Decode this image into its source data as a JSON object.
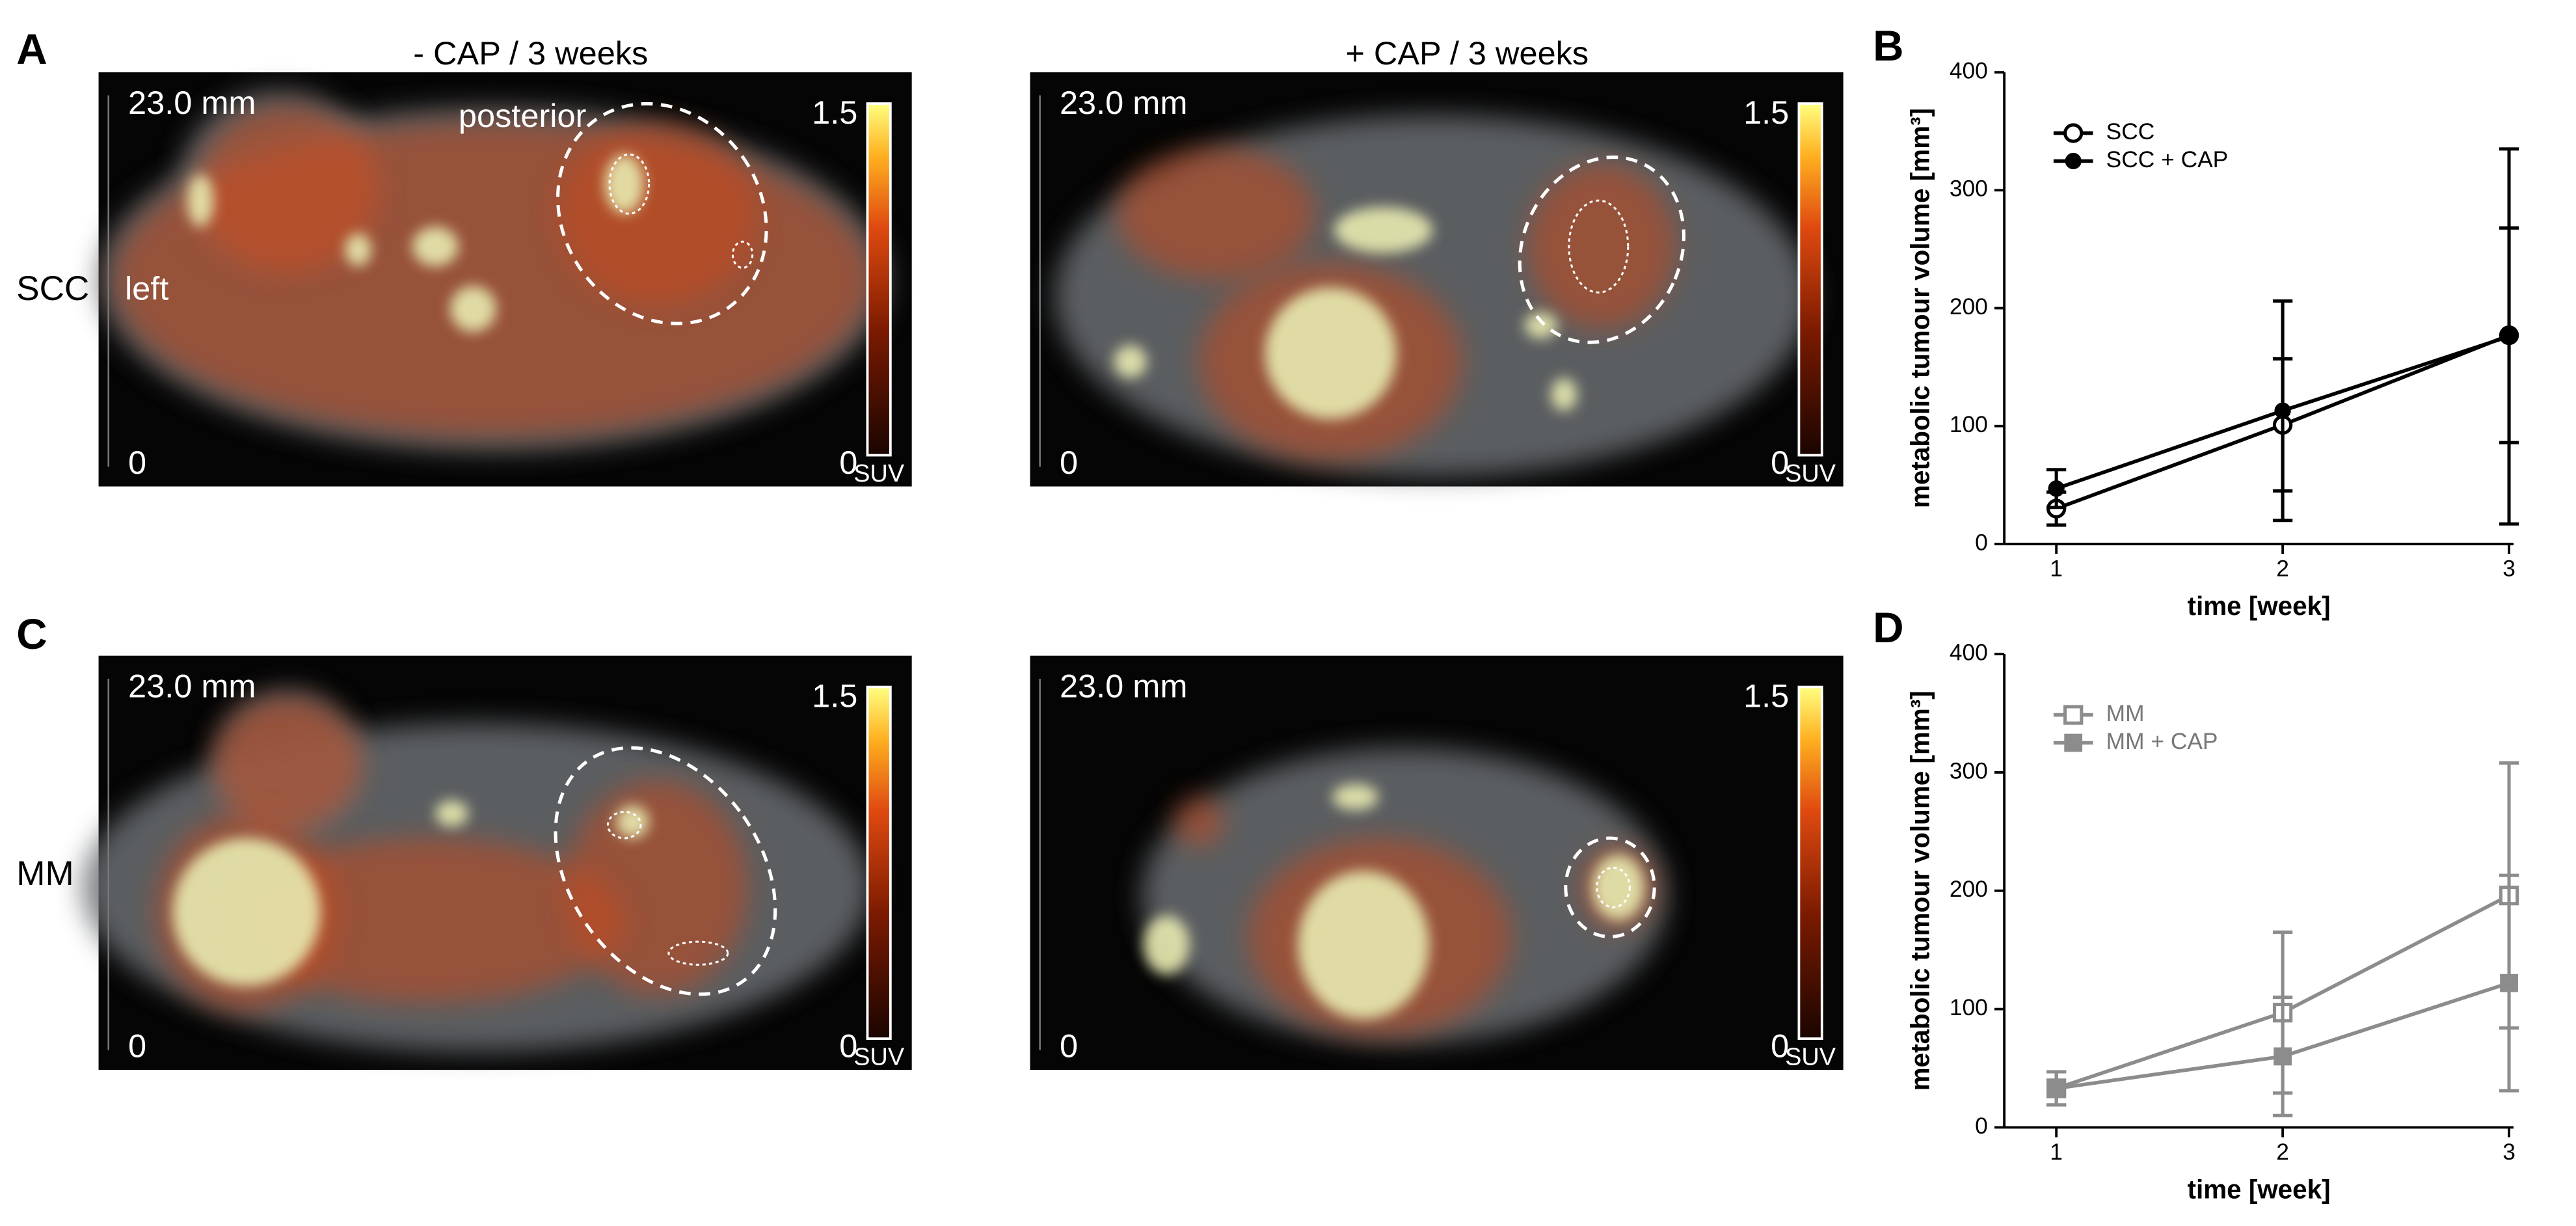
{
  "figure": {
    "panel_labels": [
      "A",
      "C"
    ],
    "column_titles": [
      "- CAP / 3 weeks",
      "+ CAP / 3 weeks"
    ],
    "row_labels": [
      "SCC",
      "MM"
    ],
    "annotations": [
      "posterior",
      "left"
    ],
    "images": [
      {
        "scale_length": "23.0 mm",
        "scale_zero": 0,
        "colorbar_max": 1.5,
        "colorbar_min": 0,
        "colorbar_unit": "SUV"
      },
      {
        "scale_length": "23.0 mm",
        "scale_zero": 0,
        "colorbar_max": 1.5,
        "colorbar_min": 0,
        "colorbar_unit": "SUV"
      },
      {
        "scale_length": "23.0 mm",
        "scale_zero": 0,
        "colorbar_max": 1.5,
        "colorbar_min": 0,
        "colorbar_unit": "SUV"
      },
      {
        "scale_length": "23.0 mm",
        "scale_zero": 0,
        "colorbar_max": 1.5,
        "colorbar_min": 0,
        "colorbar_unit": "SUV"
      }
    ]
  },
  "chart_data": [
    {
      "type": "line",
      "panel_label": "B",
      "x": [
        1,
        2,
        3
      ],
      "xlim": [
        0.77,
        3.02
      ],
      "xticks": [
        1,
        2,
        3
      ],
      "ylim": [
        0,
        400
      ],
      "yticks": [
        0,
        100,
        200,
        300,
        400
      ],
      "xlabel": "time [week]",
      "ylabel": "metabolic tumour volume [mm³]",
      "series": [
        {
          "name": "SCC",
          "color": "#000000",
          "marker": "open-circle",
          "values": [
            30,
            101,
            177
          ],
          "errors": [
            14,
            56,
            91
          ]
        },
        {
          "name": "SCC + CAP",
          "color": "#000000",
          "marker": "filled-circle",
          "values": [
            47,
            113,
            176
          ],
          "errors": [
            16,
            93,
            159
          ]
        }
      ]
    },
    {
      "type": "line",
      "panel_label": "D",
      "x": [
        1,
        2,
        3
      ],
      "xlim": [
        0.77,
        3.02
      ],
      "xticks": [
        1,
        2,
        3
      ],
      "ylim": [
        0,
        400
      ],
      "yticks": [
        0,
        100,
        200,
        300,
        400
      ],
      "xlabel": "time [week]",
      "ylabel": "metabolic tumour volume [mm³]",
      "series": [
        {
          "name": "MM",
          "color": "#8c8c8c",
          "marker": "open-square",
          "values": [
            33,
            97,
            196
          ],
          "errors": [
            14,
            68,
            112
          ]
        },
        {
          "name": "MM + CAP",
          "color": "#8c8c8c",
          "marker": "filled-square",
          "values": [
            33,
            60,
            122
          ],
          "errors": [
            14,
            50,
            91
          ]
        }
      ]
    }
  ]
}
